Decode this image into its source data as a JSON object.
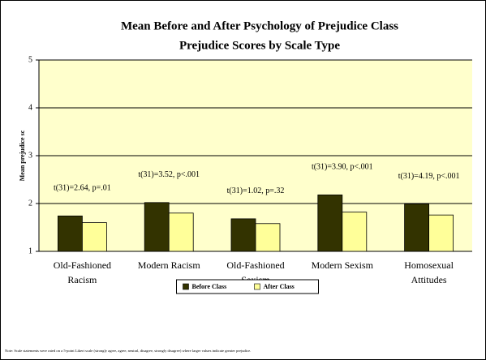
{
  "chart_data": {
    "type": "bar",
    "title": [
      "Mean Before and After Psychology of Prejudice Class",
      "Prejudice Scores by Scale Type"
    ],
    "y_label": "Mean prejudice sc",
    "categories": [
      [
        "Old-Fashioned",
        "Racism"
      ],
      [
        "Modern Racism"
      ],
      [
        "Old-Fashioned",
        "Sexism"
      ],
      [
        "Modern Sexism"
      ],
      [
        "Homosexual",
        "Attitudes"
      ]
    ],
    "series": [
      {
        "name": "Before Class",
        "color": "#333300",
        "values": [
          1.74,
          2.02,
          1.68,
          2.18,
          1.99
        ]
      },
      {
        "name": "After Class",
        "color": "#ffff99",
        "values": [
          1.6,
          1.8,
          1.58,
          1.82,
          1.76
        ]
      }
    ],
    "annotations": [
      "t(31)=2.64, p=.01",
      "t(31)=3.52, p<.001",
      "t(31)=1.02, p=.32",
      "t(31)=3.90, p<.001",
      "t(31)=4.19, p<.001"
    ],
    "ylim": [
      1,
      5
    ],
    "yticks": [
      1,
      2,
      3,
      4,
      5
    ],
    "grid": true,
    "legend": "bottom",
    "note": "Note: Scale statements were rated on a 5-point Likert scale (strongly agree, agree, neutral, disagree, strongly disagree) where larger values indicate greater prejudice."
  }
}
